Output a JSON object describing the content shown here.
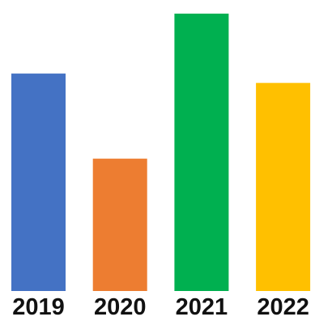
{
  "chart_data": {
    "type": "bar",
    "categories": [
      "2019",
      "2020",
      "2021",
      "2022"
    ],
    "values": [
      69,
      42,
      88,
      66
    ],
    "colors": [
      "#4472C4",
      "#ED7D31",
      "#00B050",
      "#FFC000"
    ],
    "title": "",
    "xlabel": "",
    "ylabel": "",
    "ylim": [
      0,
      90
    ],
    "grid": false,
    "legend": "none"
  }
}
